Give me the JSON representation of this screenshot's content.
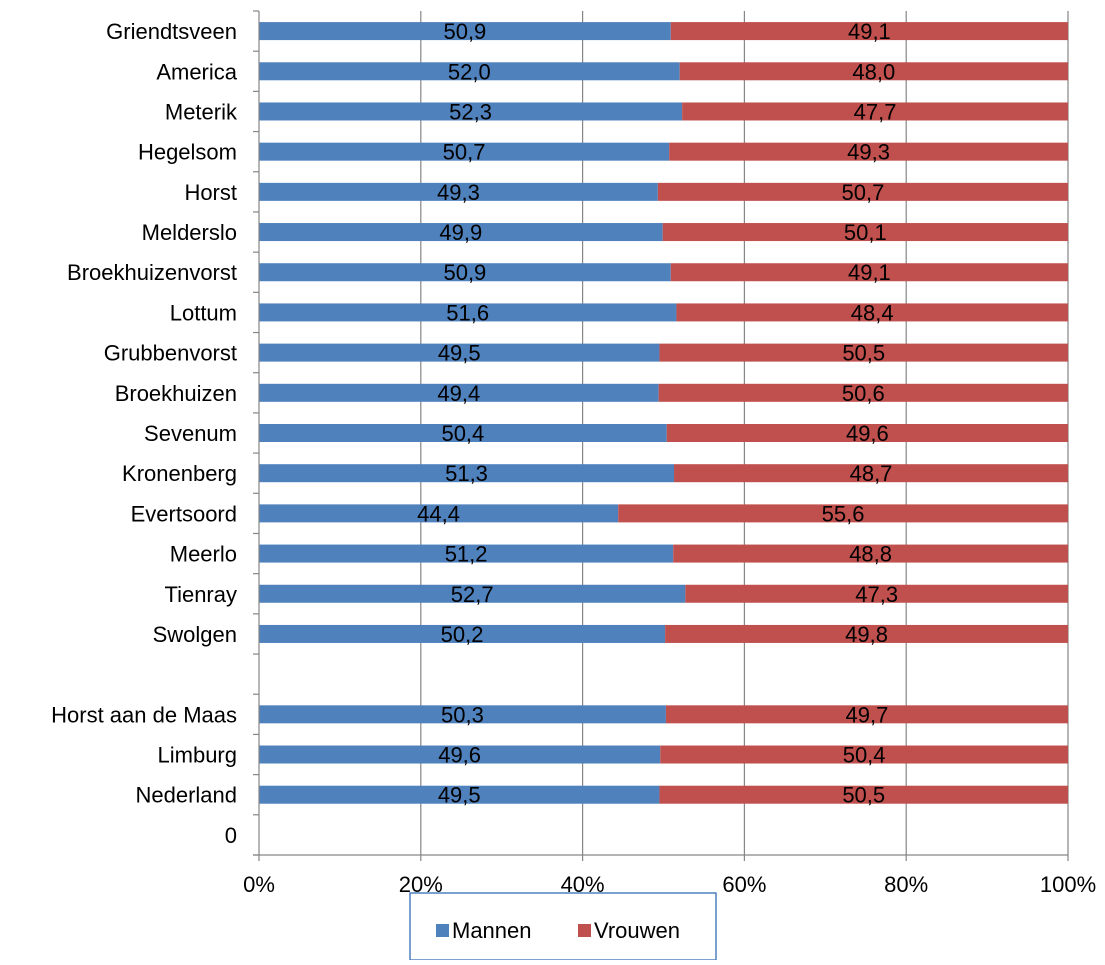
{
  "chart_data": {
    "type": "bar",
    "orientation": "horizontal",
    "stacked": "percent",
    "categories": [
      "Griendtsveen",
      "America",
      "Meterik",
      "Hegelsom",
      "Horst",
      "Melderslo",
      "Broekhuizenvorst",
      "Lottum",
      "Grubbenvorst",
      "Broekhuizen",
      "Sevenum",
      "Kronenberg",
      "Evertsoord",
      "Meerlo",
      "Tienray",
      "Swolgen",
      "",
      "Horst aan de Maas",
      "Limburg",
      "Nederland",
      "0"
    ],
    "series": [
      {
        "name": "Mannen",
        "color": "#4f81bd",
        "values": [
          50.9,
          52.0,
          52.3,
          50.7,
          49.3,
          49.9,
          50.9,
          51.6,
          49.5,
          49.4,
          50.4,
          51.3,
          44.4,
          51.2,
          52.7,
          50.2,
          null,
          50.3,
          49.6,
          49.5,
          null
        ],
        "labels": [
          "50,9",
          "52,0",
          "52,3",
          "50,7",
          "49,3",
          "49,9",
          "50,9",
          "51,6",
          "49,5",
          "49,4",
          "50,4",
          "51,3",
          "44,4",
          "51,2",
          "52,7",
          "50,2",
          "",
          "50,3",
          "49,6",
          "49,5",
          ""
        ]
      },
      {
        "name": "Vrouwen",
        "color": "#c0504d",
        "values": [
          49.1,
          48.0,
          47.7,
          49.3,
          50.7,
          50.1,
          49.1,
          48.4,
          50.5,
          50.6,
          49.6,
          48.7,
          55.6,
          48.8,
          47.3,
          49.8,
          null,
          49.7,
          50.4,
          50.5,
          null
        ],
        "labels": [
          "49,1",
          "48,0",
          "47,7",
          "49,3",
          "50,7",
          "50,1",
          "49,1",
          "48,4",
          "50,5",
          "50,6",
          "49,6",
          "48,7",
          "55,6",
          "48,8",
          "47,3",
          "49,8",
          "",
          "49,7",
          "50,4",
          "50,5",
          ""
        ]
      }
    ],
    "x_ticks": [
      "0%",
      "20%",
      "40%",
      "60%",
      "80%",
      "100%"
    ],
    "xlim": [
      0,
      100
    ],
    "grid": "vertical",
    "legend": "bottom",
    "title": "",
    "xlabel": "",
    "ylabel": ""
  }
}
